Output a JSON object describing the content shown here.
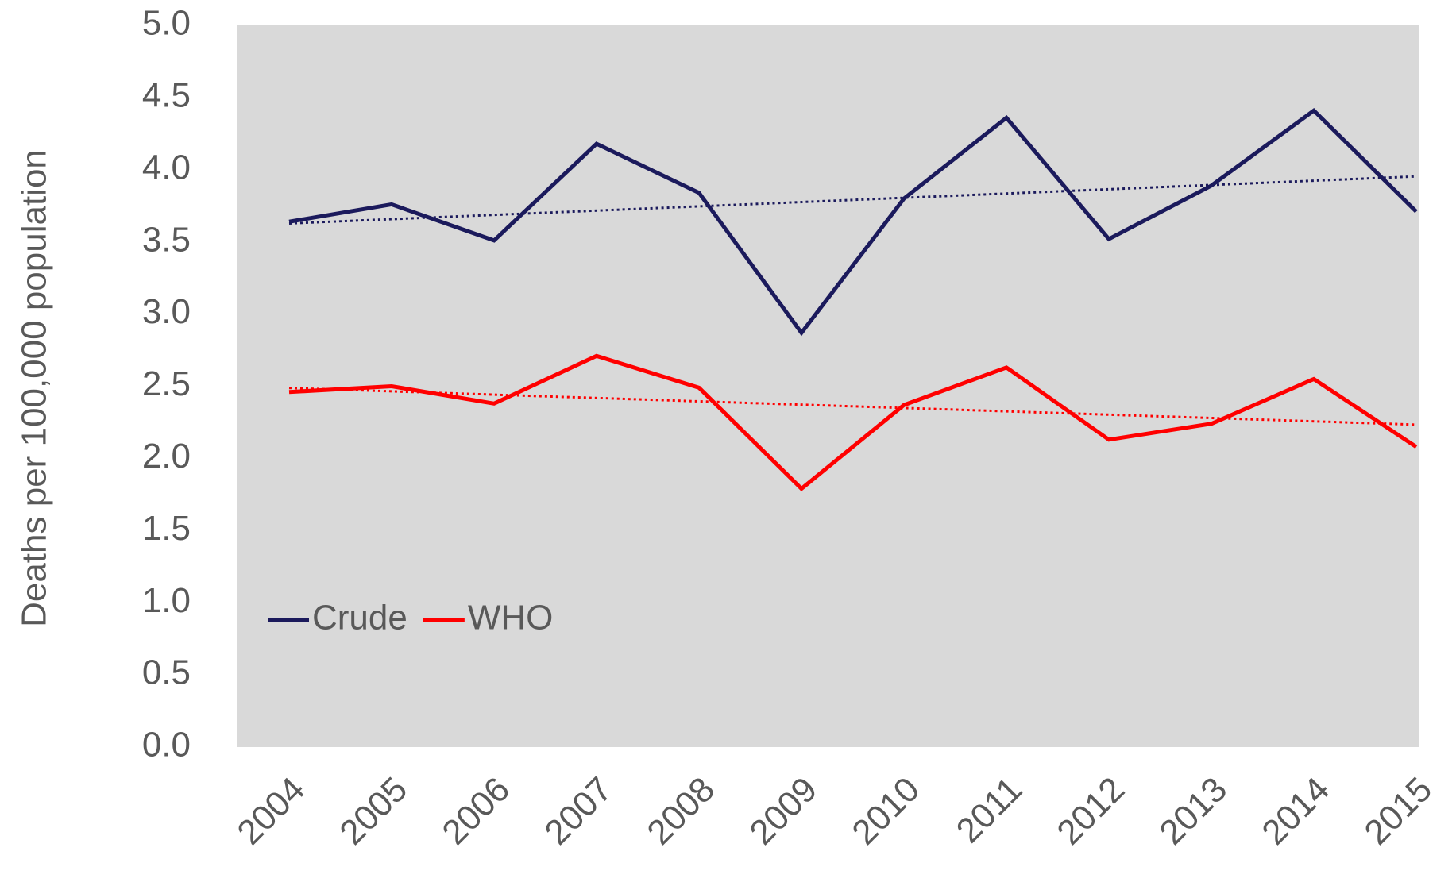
{
  "chart_data": {
    "type": "line",
    "y_axis_label": "Deaths per 100,000 population",
    "categories": [
      "2004",
      "2005",
      "2006",
      "2007",
      "2008",
      "2009",
      "2010",
      "2011",
      "2012",
      "2013",
      "2014",
      "2015"
    ],
    "series": [
      {
        "name": "Crude",
        "color": "#1b1a5c",
        "values": [
          3.64,
          3.76,
          3.51,
          4.18,
          3.84,
          2.87,
          3.8,
          4.36,
          3.52,
          3.89,
          4.41,
          3.71
        ]
      },
      {
        "name": "WHO",
        "color": "#ff0000",
        "values": [
          2.46,
          2.5,
          2.38,
          2.71,
          2.49,
          1.79,
          2.37,
          2.63,
          2.13,
          2.24,
          2.55,
          2.08
        ]
      }
    ],
    "trendline": true,
    "ylim": [
      0,
      5
    ],
    "yticks": [
      {
        "value": 0,
        "label": "0.0"
      },
      {
        "value": 0.5,
        "label": "0.5"
      },
      {
        "value": 1,
        "label": "1.0"
      },
      {
        "value": 1.5,
        "label": "1.5"
      },
      {
        "value": 2,
        "label": "2.0"
      },
      {
        "value": 2.5,
        "label": "2.5"
      },
      {
        "value": 3,
        "label": "3.0"
      },
      {
        "value": 3.5,
        "label": "3.5"
      },
      {
        "value": 4,
        "label": "4.0"
      },
      {
        "value": 4.5,
        "label": "4.5"
      },
      {
        "value": 5,
        "label": "5.0"
      }
    ],
    "plot_background": "#d9d9d9",
    "legend": "left"
  }
}
